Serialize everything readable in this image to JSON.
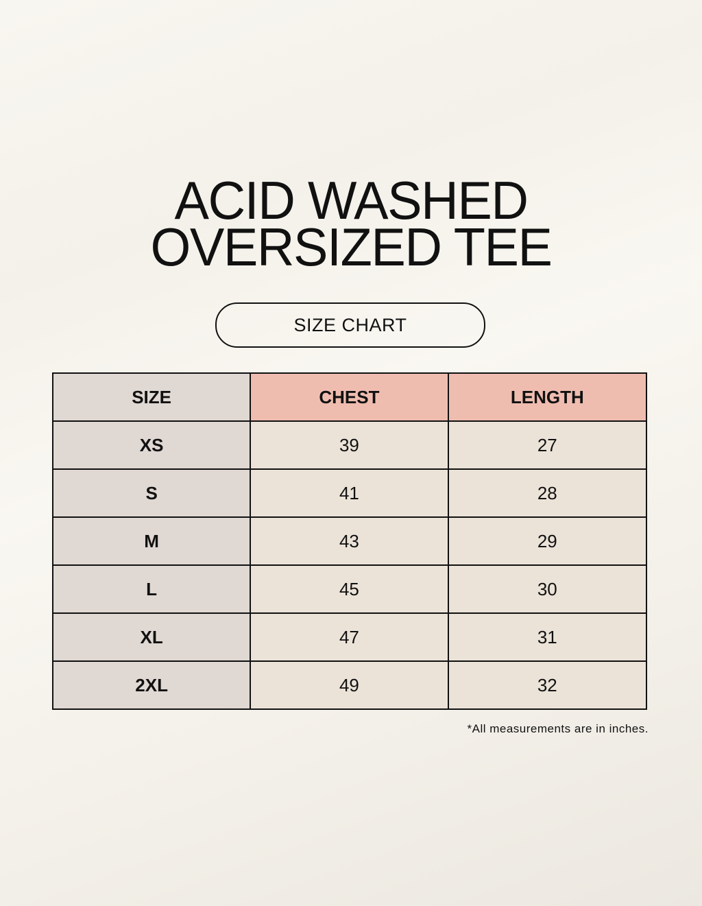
{
  "title": {
    "line1": "ACID WASHED",
    "line2": "OVERSIZED TEE"
  },
  "badge": "SIZE CHART",
  "colors": {
    "size_column": "#e0d8d3",
    "header_highlight": "#efbdb0",
    "cell": "#ebe3d8"
  },
  "table": {
    "headers": [
      "SIZE",
      "CHEST",
      "LENGTH"
    ],
    "rows": [
      [
        "XS",
        "39",
        "27"
      ],
      [
        "S",
        "41",
        "28"
      ],
      [
        "M",
        "43",
        "29"
      ],
      [
        "L",
        "45",
        "30"
      ],
      [
        "XL",
        "47",
        "31"
      ],
      [
        "2XL",
        "49",
        "32"
      ]
    ]
  },
  "note": "*All measurements are in inches."
}
